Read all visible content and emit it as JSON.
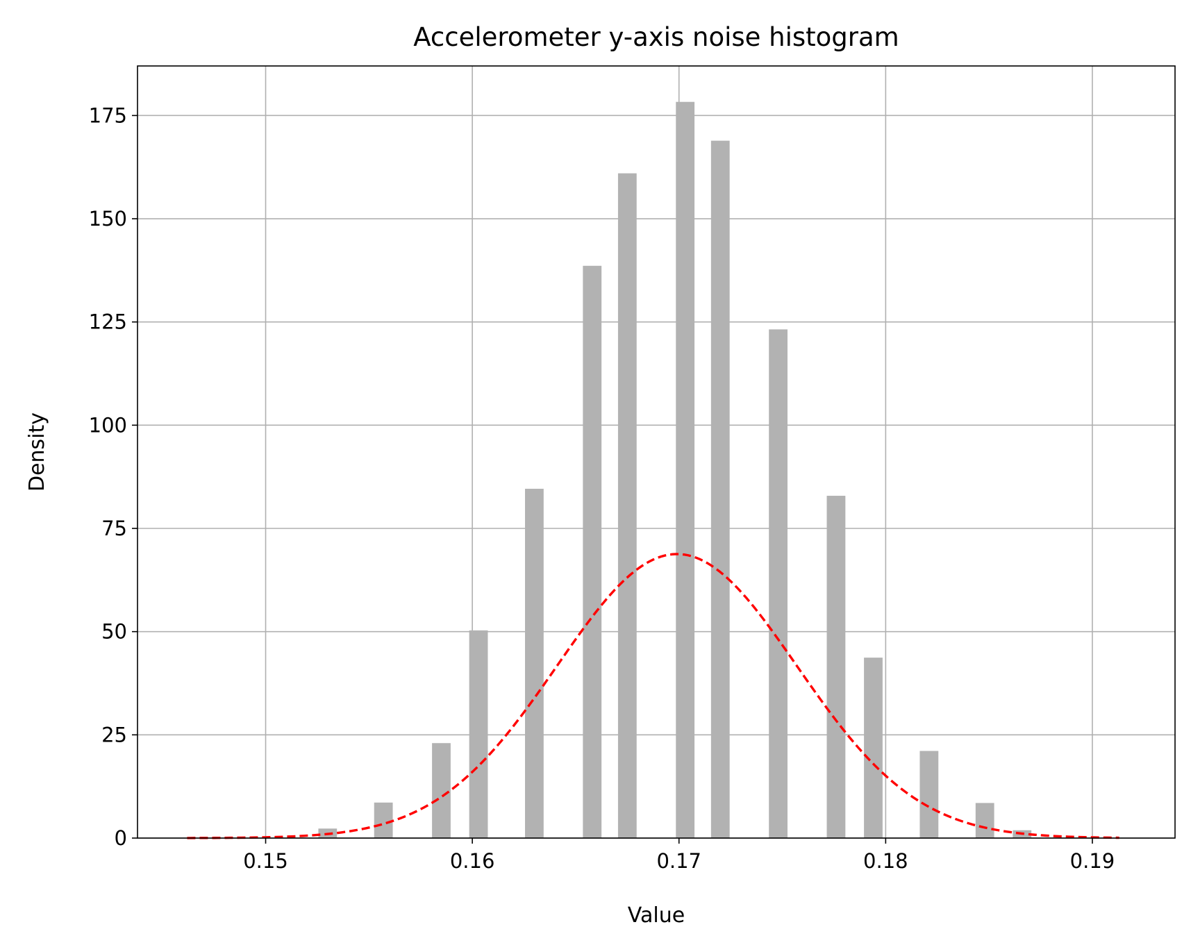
{
  "chart_data": {
    "type": "bar",
    "title": "Accelerometer y-axis noise histogram",
    "xlabel": "Value",
    "ylabel": "Density",
    "xlim": [
      0.1438,
      0.194
    ],
    "ylim": [
      0,
      187
    ],
    "xticks": [
      0.15,
      0.16,
      0.17,
      0.18,
      0.19
    ],
    "xtick_labels": [
      "0.15",
      "0.16",
      "0.17",
      "0.18",
      "0.19"
    ],
    "yticks": [
      0,
      25,
      50,
      75,
      100,
      125,
      150,
      175
    ],
    "ytick_labels": [
      "0",
      "25",
      "50",
      "75",
      "100",
      "125",
      "150",
      "175"
    ],
    "grid": true,
    "bar_color": "#b2b2b2",
    "bar_width": 0.0009,
    "bars": [
      {
        "x": 0.153,
        "value": 2.3
      },
      {
        "x": 0.1557,
        "value": 8.6
      },
      {
        "x": 0.1585,
        "value": 23.0
      },
      {
        "x": 0.1603,
        "value": 50.3
      },
      {
        "x": 0.163,
        "value": 84.6
      },
      {
        "x": 0.1658,
        "value": 138.6
      },
      {
        "x": 0.1675,
        "value": 161.0
      },
      {
        "x": 0.1703,
        "value": 178.3
      },
      {
        "x": 0.172,
        "value": 168.9
      },
      {
        "x": 0.1748,
        "value": 123.2
      },
      {
        "x": 0.1776,
        "value": 82.9
      },
      {
        "x": 0.1794,
        "value": 43.7
      },
      {
        "x": 0.1821,
        "value": 21.1
      },
      {
        "x": 0.1848,
        "value": 8.5
      },
      {
        "x": 0.1866,
        "value": 1.9
      }
    ],
    "series": [
      {
        "type": "normal-pdf-curve",
        "style": "dashed",
        "color": "#ff0000",
        "mean": 0.1699,
        "std": 0.0058,
        "x_range": [
          0.1462,
          0.1913
        ]
      }
    ]
  }
}
